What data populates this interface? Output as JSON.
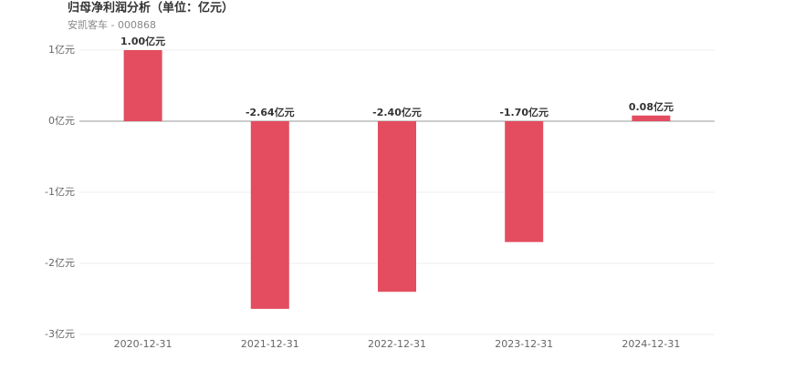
{
  "chart_data": {
    "type": "bar",
    "title": "归母净利润分析（单位：亿元）",
    "subtitle": "安凯客车 - 000868",
    "categories": [
      "2020-12-31",
      "2021-12-31",
      "2022-12-31",
      "2023-12-31",
      "2024-12-31"
    ],
    "values": [
      1.0,
      -2.64,
      -2.4,
      -1.7,
      0.08
    ],
    "value_labels": [
      "1.00亿元",
      "-2.64亿元",
      "-2.40亿元",
      "-1.70亿元",
      "0.08亿元"
    ],
    "color": "#e34d5f",
    "ylim": [
      -3,
      1
    ],
    "yticks": [
      {
        "value": 1,
        "label": "1亿元"
      },
      {
        "value": 0,
        "label": "0亿元"
      },
      {
        "value": -1,
        "label": "-1亿元"
      },
      {
        "value": -2,
        "label": "-2亿元"
      },
      {
        "value": -3,
        "label": "-3亿元"
      }
    ],
    "grid": true
  }
}
